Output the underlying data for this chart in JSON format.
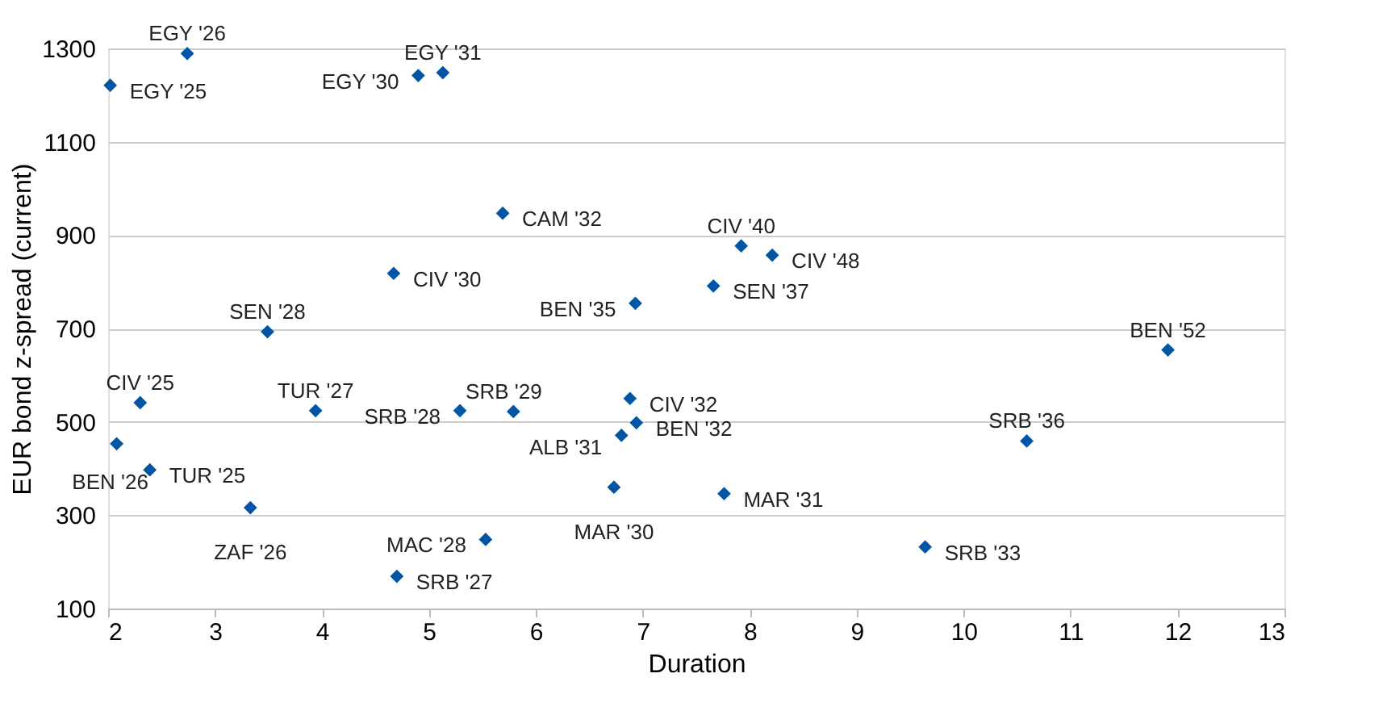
{
  "chart_data": {
    "type": "scatter",
    "xlabel": "Duration",
    "ylabel": "EUR bond z-spread (current)",
    "xlim": [
      2,
      13
    ],
    "xticks": [
      2,
      3,
      4,
      5,
      6,
      7,
      8,
      9,
      10,
      11,
      12,
      13
    ],
    "ylim": [
      100,
      1300
    ],
    "yticks": [
      100,
      300,
      500,
      700,
      900,
      1100,
      1300
    ],
    "grid": "y",
    "marker": "diamond",
    "series": [
      {
        "color": "#0055a5",
        "x": [
          2.02,
          2.74,
          4.9,
          5.13,
          5.69,
          4.67,
          6.93,
          3.49,
          7.92,
          8.21,
          7.66,
          11.91,
          10.59,
          7.76,
          9.64,
          2.3,
          2.08,
          2.39,
          3.33,
          3.94,
          5.29,
          5.79,
          6.88,
          6.94,
          6.8,
          6.73,
          5.53,
          4.7
        ],
        "values": [
          1221,
          1289,
          1242,
          1248,
          947,
          818,
          754,
          693,
          877,
          857,
          791,
          654,
          459,
          346,
          232,
          541,
          453,
          397,
          316,
          524,
          524,
          522,
          550,
          498,
          471,
          360,
          248,
          169
        ]
      }
    ],
    "annotations": [
      {
        "text": "EGY '25",
        "x": 2.02,
        "y": 1221
      },
      {
        "text": "EGY '26",
        "x": 2.74,
        "y": 1289
      },
      {
        "text": "EGY '30",
        "x": 4.9,
        "y": 1242
      },
      {
        "text": "EGY '31",
        "x": 5.13,
        "y": 1248
      },
      {
        "text": "CAM '32",
        "x": 5.69,
        "y": 947
      },
      {
        "text": "CIV '30",
        "x": 4.67,
        "y": 818
      },
      {
        "text": "BEN '35",
        "x": 6.93,
        "y": 754
      },
      {
        "text": "SEN '28",
        "x": 3.49,
        "y": 693
      },
      {
        "text": "CIV '40",
        "x": 7.92,
        "y": 877
      },
      {
        "text": "CIV '48",
        "x": 8.21,
        "y": 857
      },
      {
        "text": "SEN '37",
        "x": 7.66,
        "y": 791
      },
      {
        "text": "BEN '52",
        "x": 11.91,
        "y": 654
      },
      {
        "text": "SRB '36",
        "x": 10.59,
        "y": 459
      },
      {
        "text": "MAR '31",
        "x": 7.76,
        "y": 346
      },
      {
        "text": "SRB '33",
        "x": 9.64,
        "y": 232
      },
      {
        "text": "CIV '25",
        "x": 2.3,
        "y": 541
      },
      {
        "text": "BEN '26",
        "x": 2.08,
        "y": 453
      },
      {
        "text": "TUR '25",
        "x": 2.39,
        "y": 397
      },
      {
        "text": "ZAF '26",
        "x": 3.33,
        "y": 316
      },
      {
        "text": "TUR '27",
        "x": 3.94,
        "y": 524
      },
      {
        "text": "SRB '28",
        "x": 5.29,
        "y": 524
      },
      {
        "text": "SRB '29",
        "x": 5.79,
        "y": 522
      },
      {
        "text": "CIV '32",
        "x": 6.88,
        "y": 550
      },
      {
        "text": "BEN '32",
        "x": 6.94,
        "y": 498
      },
      {
        "text": "ALB '31",
        "x": 6.8,
        "y": 471
      },
      {
        "text": "MAR '30",
        "x": 6.73,
        "y": 360
      },
      {
        "text": "MAC '28",
        "x": 5.53,
        "y": 248
      },
      {
        "text": "SRB '27",
        "x": 4.7,
        "y": 169
      }
    ]
  }
}
